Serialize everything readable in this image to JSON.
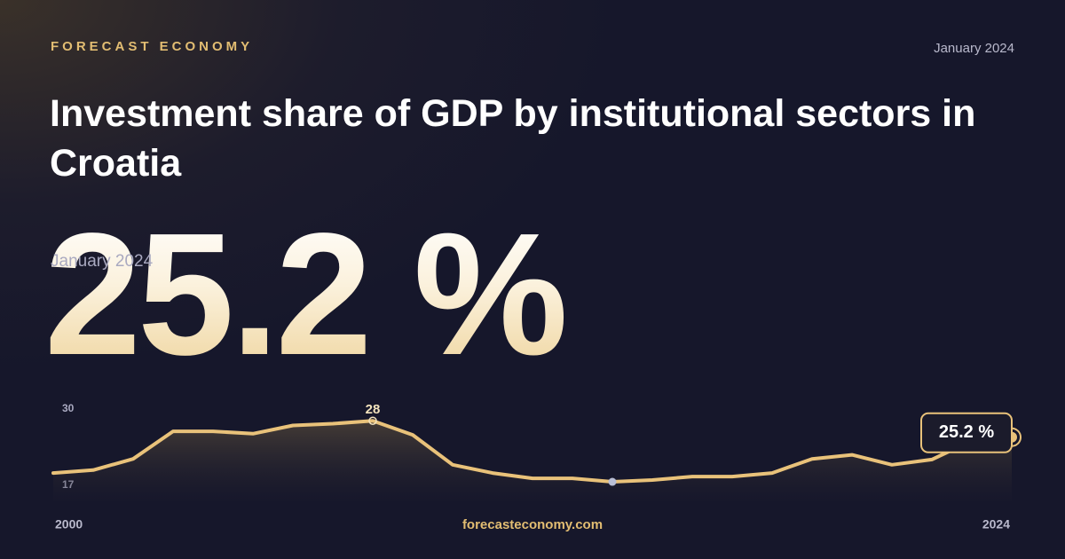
{
  "brand": "FORECAST ECONOMY",
  "date": "January 2024",
  "footer": "forecasteconomy.com",
  "chart_data": {
    "type": "line",
    "title": "Investment share of GDP by institutional sectors in Croatia",
    "x": [
      2000,
      2001,
      2002,
      2003,
      2004,
      2005,
      2006,
      2007,
      2008,
      2009,
      2010,
      2011,
      2012,
      2013,
      2014,
      2015,
      2016,
      2017,
      2018,
      2019,
      2020,
      2021,
      2022,
      2023,
      2024
    ],
    "values": [
      19.1,
      19.6,
      21.5,
      26.2,
      26.2,
      25.8,
      27.2,
      27.5,
      28,
      25.6,
      20.5,
      19.1,
      18.2,
      18.2,
      17.6,
      17.9,
      18.5,
      18.5,
      19.1,
      21.5,
      22.2,
      20.5,
      21.4,
      24.6,
      25.2
    ],
    "value_labels": [
      null,
      null,
      null,
      null,
      null,
      null,
      null,
      null,
      null,
      null,
      null,
      null,
      null,
      null,
      null,
      null,
      null,
      null,
      null,
      null,
      null,
      null,
      null,
      null,
      "25.2 %"
    ],
    "color": "#e9c27a",
    "xlim": [
      2000,
      2024
    ],
    "xticks": [
      2000,
      2024
    ],
    "ylim": [
      17,
      30
    ],
    "yticks": [
      17,
      30
    ]
  }
}
